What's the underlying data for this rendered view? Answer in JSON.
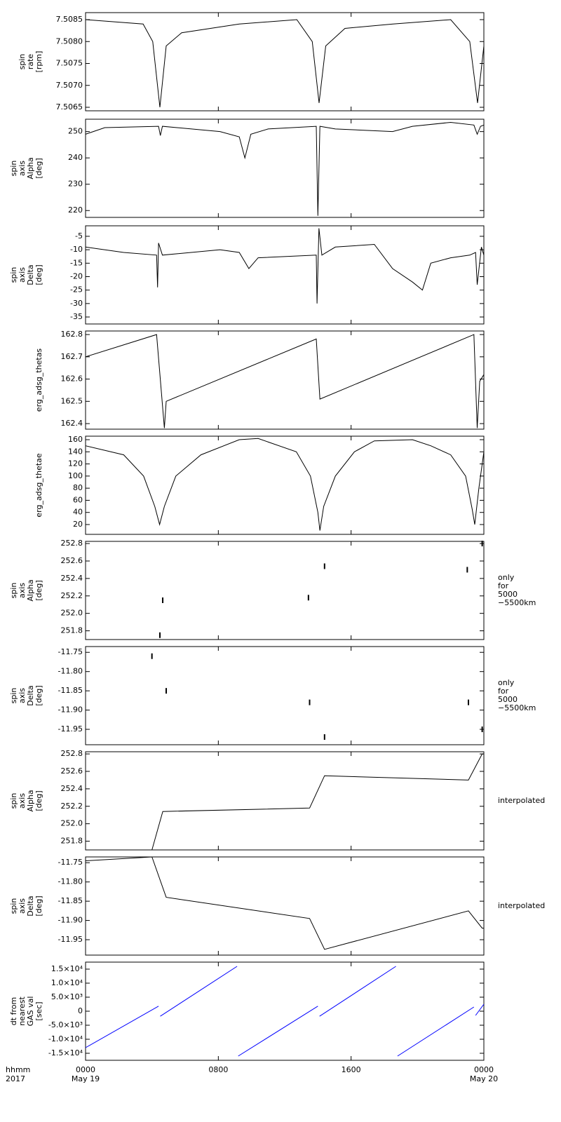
{
  "chart_data": [
    {
      "type": "line",
      "ylabel": [
        "spin",
        "rate",
        "[rpm]"
      ],
      "ylim": [
        7.50642,
        7.50866
      ],
      "yticks": [
        7.5065,
        {
          "value": 7.507,
          "label": "7.5070"
        },
        7.5075,
        {
          "value": 7.508,
          "label": "7.5080"
        },
        7.5085
      ],
      "color": "#000000",
      "x": [
        0,
        3.47,
        4.05,
        4.48,
        4.86,
        5.79,
        9.26,
        12.73,
        13.66,
        14.07,
        14.47,
        15.63,
        18.52,
        22.0,
        23.15,
        23.62,
        24
      ],
      "values": [
        7.5085,
        7.5084,
        7.508,
        7.5065,
        7.5079,
        7.5082,
        7.5084,
        7.5085,
        7.508,
        7.5066,
        7.5079,
        7.5083,
        7.5084,
        7.5085,
        7.508,
        7.5066,
        7.5079
      ]
    },
    {
      "type": "line",
      "ylabel": [
        "spin",
        "axis",
        "Alpha",
        "[deg]"
      ],
      "ylim": [
        217.4,
        254.7
      ],
      "yticks": [
        220,
        230,
        240,
        250
      ],
      "color": "#000000",
      "x": [
        0,
        1.16,
        4.4,
        4.51,
        4.63,
        8.1,
        9.26,
        9.6,
        9.96,
        11,
        13.9,
        14.0,
        14.12,
        15.05,
        18.5,
        19.7,
        22,
        23.4,
        23.6,
        23.8,
        24
      ],
      "values": [
        249,
        251.5,
        252,
        248.5,
        252,
        250,
        248,
        240,
        249,
        251,
        252,
        218,
        252,
        251,
        250,
        252,
        253.5,
        252.5,
        249,
        252,
        252.5
      ]
    },
    {
      "type": "line",
      "ylabel": [
        "spin",
        "axis",
        "Delta",
        "[deg]"
      ],
      "ylim": [
        -37.6,
        -1.1
      ],
      "yticks": [
        -35,
        -30,
        -25,
        -20,
        -15,
        -10,
        -5
      ],
      "color": "#000000",
      "x": [
        0,
        2.3,
        4.28,
        4.34,
        4.4,
        4.63,
        8.1,
        9.26,
        9.84,
        10.4,
        13.9,
        13.95,
        14.06,
        14.24,
        15.05,
        17.4,
        18.5,
        19.7,
        20.3,
        20.8,
        22,
        23.15,
        23.5,
        23.6,
        23.85,
        24
      ],
      "values": [
        -9,
        -11,
        -12,
        -24,
        -7.5,
        -12,
        -10,
        -11,
        -17,
        -13,
        -12,
        -30,
        -2,
        -12,
        -9,
        -8,
        -17,
        -22,
        -25,
        -15,
        -13,
        -12,
        -11,
        -23,
        -9,
        -12
      ]
    },
    {
      "type": "line",
      "ylabel": [
        "erg_adsg_thetas"
      ],
      "ylim": [
        162.375,
        162.816
      ],
      "yticks": [
        162.4,
        162.5,
        162.6,
        162.7,
        162.8
      ],
      "color": "#000000",
      "x": [
        0,
        4.28,
        4.75,
        4.86,
        13.9,
        14.12,
        23.4,
        23.6,
        23.75,
        24
      ],
      "values": [
        162.7,
        162.8,
        162.38,
        162.5,
        162.78,
        162.51,
        162.8,
        162.38,
        162.59,
        162.62
      ]
    },
    {
      "type": "line",
      "ylabel": [
        "erg_adsg_thetae"
      ],
      "ylim": [
        3.8,
        165.8
      ],
      "yticks": [
        20,
        40,
        60,
        80,
        100,
        120,
        140,
        160
      ],
      "color": "#000000",
      "x": [
        0,
        2.3,
        3.5,
        4.17,
        4.46,
        4.75,
        5.44,
        6.95,
        9.26,
        10.4,
        12.7,
        13.55,
        14.0,
        14.12,
        14.35,
        15.05,
        16.2,
        17.4,
        19.7,
        20.8,
        22,
        22.9,
        23.3,
        23.45,
        23.7,
        24
      ],
      "values": [
        150,
        135,
        100,
        50,
        20,
        50,
        100,
        135,
        160,
        162,
        140,
        100,
        40,
        10,
        50,
        100,
        140,
        158,
        160,
        150,
        135,
        100,
        45,
        20,
        80,
        140
      ]
    },
    {
      "type": "scatter",
      "ylabel": [
        "spin",
        "axis",
        "Alpha",
        "[deg]"
      ],
      "note": [
        "only",
        "for",
        "5000",
        "−5500km"
      ],
      "ylim": [
        251.7,
        252.825
      ],
      "yticks": [
        251.8,
        {
          "value": 252,
          "label": "252.0"
        },
        252.2,
        252.4,
        252.6,
        252.8
      ],
      "color": "#000000",
      "x": [
        4.48,
        4.65,
        13.43,
        14.4,
        23.0,
        23.9
      ],
      "values": [
        251.75,
        252.15,
        252.18,
        252.54,
        252.5,
        252.8
      ]
    },
    {
      "type": "scatter",
      "ylabel": [
        "spin",
        "axis",
        "Delta",
        "[deg]"
      ],
      "note": [
        "only",
        "for",
        "5000",
        "−5500km"
      ],
      "ylim": [
        -11.99,
        -11.735
      ],
      "yticks": [
        -11.95,
        {
          "value": -11.9,
          "label": "-11.90"
        },
        -11.85,
        {
          "value": -11.8,
          "label": "-11.80"
        },
        -11.75
      ],
      "color": "#000000",
      "x": [
        4.0,
        4.86,
        13.5,
        14.4,
        23.07,
        23.9
      ],
      "values": [
        -11.76,
        -11.85,
        -11.88,
        -11.97,
        -11.88,
        -11.95
      ]
    },
    {
      "type": "line",
      "ylabel": [
        "spin",
        "axis",
        "Alpha",
        "[deg]"
      ],
      "note": [
        "interpolated"
      ],
      "ylim": [
        251.7,
        252.825
      ],
      "yticks": [
        251.8,
        {
          "value": 252,
          "label": "252.0"
        },
        252.2,
        252.4,
        252.6,
        252.8
      ],
      "color": "#000000",
      "x": [
        4.0,
        4.65,
        13.5,
        14.4,
        23.07,
        23.9,
        24
      ],
      "values": [
        251.7,
        252.14,
        252.18,
        252.55,
        252.5,
        252.8,
        252.8
      ]
    },
    {
      "type": "line",
      "ylabel": [
        "spin",
        "axis",
        "Delta",
        "[deg]"
      ],
      "note": [
        "interpolated"
      ],
      "ylim": [
        -11.99,
        -11.735
      ],
      "yticks": [
        -11.95,
        {
          "value": -11.9,
          "label": "-11.90"
        },
        -11.85,
        {
          "value": -11.8,
          "label": "-11.80"
        },
        -11.75
      ],
      "color": "#000000",
      "x": [
        0,
        4.0,
        4.86,
        13.5,
        14.4,
        23.07,
        23.9,
        24
      ],
      "values": [
        -11.745,
        -11.735,
        -11.84,
        -11.895,
        -11.975,
        -11.875,
        -11.92,
        -11.92
      ]
    },
    {
      "type": "line",
      "ylabel": [
        "dt from",
        "nearest",
        "GAS val",
        "[sec]"
      ],
      "ylim": [
        -17500,
        17500
      ],
      "yticks": [
        {
          "value": -15000,
          "label": "-1.5×10⁴"
        },
        {
          "value": -10000,
          "label": "-1.0×10⁴"
        },
        {
          "value": -5000,
          "label": "-5.0×10³"
        },
        0,
        {
          "value": 5000,
          "label": "5.0×10³"
        },
        {
          "value": 10000,
          "label": "1.0×10⁴"
        },
        {
          "value": 15000,
          "label": "1.5×10⁴"
        }
      ],
      "color": "#0000ff",
      "x": [
        0,
        4.4,
        4.45,
        4.5,
        9.13,
        9.16,
        9.2,
        14.0,
        14.05,
        14.1,
        18.7,
        18.75,
        18.8,
        23.4,
        23.45,
        23.5,
        24
      ],
      "values": [
        -13000,
        1800,
        null,
        -1800,
        16000,
        null,
        -16000,
        1800,
        null,
        -1800,
        16000,
        null,
        -16000,
        1500,
        null,
        -1500,
        2500
      ],
      "xlim": [
        0,
        24
      ],
      "xticks": [
        {
          "value": 0,
          "label": "0000"
        },
        {
          "value": 8,
          "label": "0800"
        },
        {
          "value": 16,
          "label": "1600"
        },
        {
          "value": 24,
          "label": "0000"
        }
      ],
      "xtick_sublabels": [
        "May 19",
        null,
        null,
        "May 20"
      ],
      "xlabel": [
        "hhmm",
        "2017"
      ]
    }
  ]
}
